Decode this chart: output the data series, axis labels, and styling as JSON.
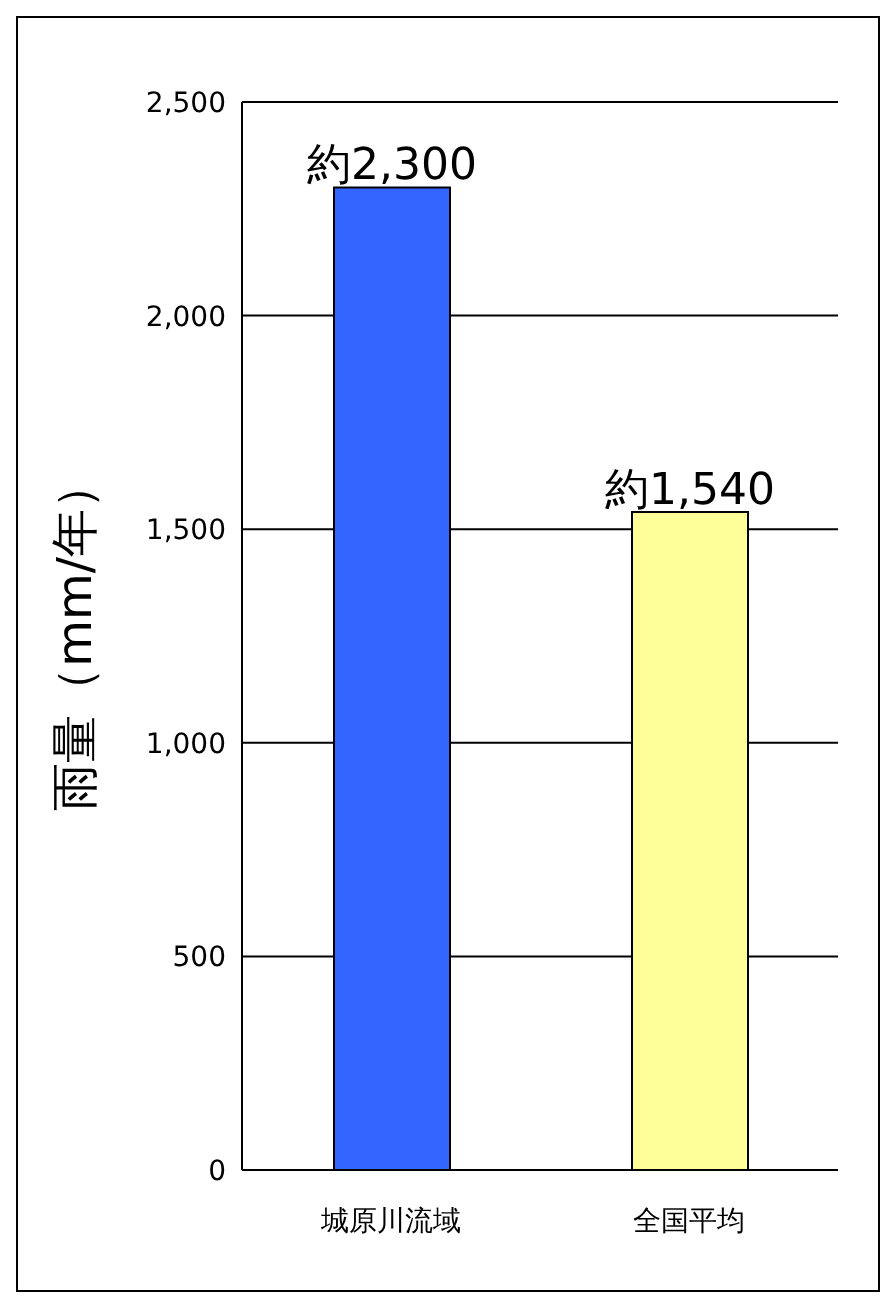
{
  "chart_data": {
    "type": "bar",
    "ylabel": "雨量（mm/年）",
    "categories": [
      "城原川流域",
      "全国平均"
    ],
    "values": [
      2300,
      1540
    ],
    "colors": [
      "#3366ff",
      "#ffff99"
    ],
    "value_labels": [
      "約2,300",
      "約1,540"
    ],
    "ylim": [
      0,
      2500
    ],
    "yticks": [
      {
        "value": 0,
        "label": "0"
      },
      {
        "value": 500,
        "label": "500"
      },
      {
        "value": 1000,
        "label": "1,000"
      },
      {
        "value": 1500,
        "label": "1,500"
      },
      {
        "value": 2000,
        "label": "2,000"
      },
      {
        "value": 2500,
        "label": "2,500"
      }
    ],
    "grid": "y",
    "legend": false
  }
}
